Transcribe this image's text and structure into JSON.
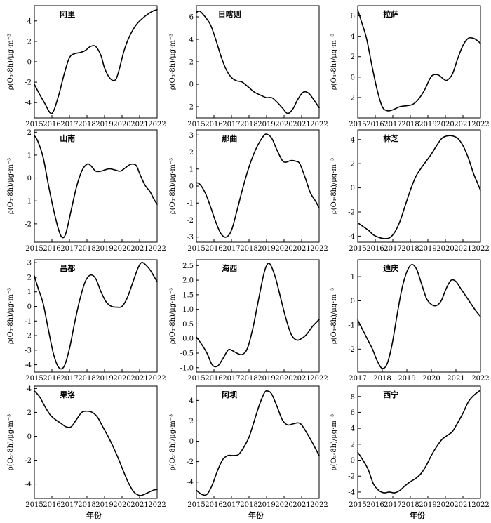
{
  "figure": {
    "ylabel": "ρ(O₃-8h)/μg·m⁻³",
    "xlabel": "年份"
  },
  "chart_data": [
    {
      "type": "line",
      "title": "阿里",
      "xlabel": "",
      "ylabel": "ρ(O₃-8h)/μg·m⁻³",
      "xlim": [
        2015,
        2022
      ],
      "xticks": [
        2015,
        2016,
        2017,
        2018,
        2019,
        2020,
        2021,
        2022
      ],
      "ylim": [
        -5.5,
        5.5
      ],
      "yticks": [
        -4,
        -2,
        0,
        2,
        4
      ],
      "series": [
        {
          "x": [
            2015,
            2015.3,
            2015.6,
            2015.9,
            2016.1,
            2016.4,
            2016.7,
            2017.0,
            2017.3,
            2017.6,
            2017.9,
            2018.2,
            2018.5,
            2018.8,
            2019.0,
            2019.3,
            2019.6,
            2019.8,
            2020.1,
            2020.4,
            2020.8,
            2021.2,
            2021.5,
            2021.8,
            2022.0
          ],
          "y": [
            -2.2,
            -3.2,
            -4.1,
            -5.0,
            -4.8,
            -3.2,
            -1.2,
            0.4,
            0.8,
            0.9,
            1.1,
            1.5,
            1.5,
            0.6,
            -0.6,
            -1.6,
            -1.8,
            -1.0,
            1.0,
            2.4,
            3.6,
            4.3,
            4.7,
            5.0,
            5.1
          ]
        }
      ]
    },
    {
      "type": "line",
      "title": "日喀则",
      "xlabel": "",
      "ylabel": "ρ(O₃-8h)/μg·m⁻³",
      "xlim": [
        2015,
        2022
      ],
      "xticks": [
        2015,
        2016,
        2017,
        2018,
        2019,
        2020,
        2021,
        2022
      ],
      "ylim": [
        -3,
        7
      ],
      "yticks": [
        -2,
        0,
        2,
        4,
        6
      ],
      "series": [
        {
          "x": [
            2015,
            2015.2,
            2015.5,
            2015.8,
            2016.1,
            2016.4,
            2016.7,
            2017.0,
            2017.3,
            2017.6,
            2018.0,
            2018.3,
            2018.7,
            2019.0,
            2019.3,
            2019.6,
            2019.9,
            2020.2,
            2020.5,
            2020.8,
            2021.1,
            2021.4,
            2021.7,
            2022.0
          ],
          "y": [
            6.4,
            6.5,
            6.0,
            5.3,
            4.0,
            2.5,
            1.3,
            0.6,
            0.3,
            0.2,
            -0.3,
            -0.7,
            -1.0,
            -1.2,
            -1.2,
            -1.6,
            -2.1,
            -2.6,
            -2.2,
            -1.3,
            -0.7,
            -0.8,
            -1.4,
            -2.1
          ]
        }
      ]
    },
    {
      "type": "line",
      "title": "拉萨",
      "xlabel": "",
      "ylabel": "ρ(O₃-8h)/μg·m⁻³",
      "xlim": [
        2015,
        2022
      ],
      "xticks": [
        2015,
        2016,
        2017,
        2018,
        2019,
        2020,
        2021,
        2022
      ],
      "ylim": [
        -4,
        7
      ],
      "yticks": [
        -2,
        0,
        2,
        4,
        6
      ],
      "series": [
        {
          "x": [
            2015,
            2015.2,
            2015.5,
            2015.8,
            2016.1,
            2016.4,
            2016.7,
            2017.0,
            2017.4,
            2017.8,
            2018.1,
            2018.4,
            2018.8,
            2019.1,
            2019.3,
            2019.6,
            2019.9,
            2020.1,
            2020.4,
            2020.7,
            2021.0,
            2021.3,
            2021.6,
            2021.8,
            2022.0
          ],
          "y": [
            6.6,
            5.5,
            3.8,
            1.2,
            -1.2,
            -2.9,
            -3.3,
            -3.2,
            -2.9,
            -2.8,
            -2.7,
            -2.3,
            -1.3,
            -0.2,
            0.2,
            0.2,
            -0.2,
            -0.3,
            0.3,
            1.8,
            3.1,
            3.8,
            3.8,
            3.6,
            3.3
          ]
        }
      ]
    },
    {
      "type": "line",
      "title": "山南",
      "xlabel": "",
      "ylabel": "ρ(O₃-8h)/μg·m⁻³",
      "xlim": [
        2015,
        2022
      ],
      "xticks": [
        2015,
        2016,
        2017,
        2018,
        2019,
        2020,
        2021,
        2022
      ],
      "ylim": [
        -2.8,
        2.1
      ],
      "yticks": [
        -2,
        -1,
        0,
        1,
        2
      ],
      "series": [
        {
          "x": [
            2015,
            2015.2,
            2015.5,
            2015.8,
            2016.1,
            2016.4,
            2016.6,
            2016.8,
            2017.1,
            2017.4,
            2017.7,
            2018.0,
            2018.2,
            2018.5,
            2018.8,
            2019.0,
            2019.3,
            2019.6,
            2019.9,
            2020.2,
            2020.5,
            2020.8,
            2021.0,
            2021.3,
            2021.6,
            2021.8,
            2022.0
          ],
          "y": [
            1.85,
            1.6,
            0.9,
            -0.3,
            -1.4,
            -2.3,
            -2.6,
            -2.4,
            -1.4,
            -0.4,
            0.3,
            0.6,
            0.55,
            0.3,
            0.3,
            0.35,
            0.4,
            0.35,
            0.3,
            0.45,
            0.6,
            0.55,
            0.2,
            -0.3,
            -0.6,
            -0.9,
            -1.15
          ]
        }
      ]
    },
    {
      "type": "line",
      "title": "那曲",
      "xlabel": "",
      "ylabel": "ρ(O₃-8h)/μg·m⁻³",
      "xlim": [
        2015,
        2022
      ],
      "xticks": [
        2015,
        2016,
        2017,
        2018,
        2019,
        2020,
        2021,
        2022
      ],
      "ylim": [
        -3.3,
        3.3
      ],
      "yticks": [
        -3,
        -2,
        -1,
        0,
        1,
        2,
        3
      ],
      "series": [
        {
          "x": [
            2015,
            2015.2,
            2015.5,
            2015.8,
            2016.1,
            2016.4,
            2016.7,
            2017.0,
            2017.3,
            2017.6,
            2017.9,
            2018.2,
            2018.5,
            2018.8,
            2019.0,
            2019.3,
            2019.6,
            2019.9,
            2020.1,
            2020.4,
            2020.7,
            2020.9,
            2021.2,
            2021.5,
            2021.8,
            2022.0
          ],
          "y": [
            0.2,
            0.1,
            -0.4,
            -1.2,
            -2.1,
            -2.8,
            -3.0,
            -2.6,
            -1.5,
            -0.3,
            0.8,
            1.7,
            2.4,
            2.9,
            3.05,
            2.8,
            2.1,
            1.5,
            1.4,
            1.5,
            1.45,
            1.3,
            0.5,
            -0.4,
            -0.9,
            -1.3
          ]
        }
      ]
    },
    {
      "type": "line",
      "title": "林芝",
      "xlabel": "",
      "ylabel": "ρ(O₃-8h)/μg·m⁻³",
      "xlim": [
        2015,
        2022
      ],
      "xticks": [
        2015,
        2016,
        2017,
        2018,
        2019,
        2020,
        2021,
        2022
      ],
      "ylim": [
        -4.5,
        4.8
      ],
      "yticks": [
        -4,
        -2,
        0,
        2,
        4
      ],
      "series": [
        {
          "x": [
            2015,
            2015.3,
            2015.6,
            2015.9,
            2016.2,
            2016.5,
            2016.8,
            2017.1,
            2017.4,
            2017.7,
            2018.0,
            2018.3,
            2018.6,
            2018.9,
            2019.2,
            2019.5,
            2019.8,
            2020.1,
            2020.4,
            2020.7,
            2021.0,
            2021.3,
            2021.6,
            2021.8,
            2022.0
          ],
          "y": [
            -2.9,
            -3.2,
            -3.5,
            -3.9,
            -4.1,
            -4.2,
            -4.15,
            -3.7,
            -2.8,
            -1.5,
            -0.2,
            0.9,
            1.6,
            2.2,
            2.8,
            3.5,
            4.1,
            4.3,
            4.3,
            4.1,
            3.5,
            2.5,
            1.2,
            0.5,
            -0.2
          ]
        }
      ]
    },
    {
      "type": "line",
      "title": "昌都",
      "xlabel": "",
      "ylabel": "ρ(O₃-8h)/μg·m⁻³",
      "xlim": [
        2015,
        2022
      ],
      "xticks": [
        2015,
        2016,
        2017,
        2018,
        2019,
        2020,
        2021,
        2022
      ],
      "ylim": [
        -4.5,
        3.2
      ],
      "yticks": [
        -4,
        -3,
        -2,
        -1,
        0,
        1,
        2,
        3
      ],
      "series": [
        {
          "x": [
            2015,
            2015.2,
            2015.5,
            2015.8,
            2016.1,
            2016.4,
            2016.7,
            2017.0,
            2017.3,
            2017.6,
            2017.9,
            2018.2,
            2018.5,
            2018.8,
            2019.1,
            2019.4,
            2019.7,
            2020.0,
            2020.3,
            2020.6,
            2020.9,
            2021.1,
            2021.3,
            2021.6,
            2021.8,
            2022.0
          ],
          "y": [
            2.1,
            1.3,
            0.2,
            -1.6,
            -3.3,
            -4.2,
            -4.1,
            -2.9,
            -1.1,
            0.5,
            1.7,
            2.15,
            1.9,
            1.0,
            0.3,
            0.0,
            -0.05,
            0.0,
            0.6,
            1.6,
            2.6,
            3.0,
            2.9,
            2.5,
            2.1,
            1.7
          ]
        }
      ]
    },
    {
      "type": "line",
      "title": "海西",
      "xlabel": "",
      "ylabel": "ρ(O₃-8h)/μg·m⁻³",
      "xlim": [
        2015,
        2022
      ],
      "xticks": [
        2015,
        2016,
        2017,
        2018,
        2019,
        2020,
        2021,
        2022
      ],
      "ylim": [
        -1.15,
        2.7
      ],
      "yticks": [
        -1.0,
        -0.5,
        0.0,
        0.5,
        1.0,
        1.5,
        2.0,
        2.5
      ],
      "series": [
        {
          "x": [
            2015,
            2015.3,
            2015.6,
            2015.9,
            2016.2,
            2016.5,
            2016.8,
            2017.0,
            2017.3,
            2017.6,
            2017.9,
            2018.2,
            2018.5,
            2018.8,
            2019.0,
            2019.2,
            2019.5,
            2019.8,
            2020.1,
            2020.4,
            2020.7,
            2021.0,
            2021.3,
            2021.6,
            2022.0
          ],
          "y": [
            0.05,
            -0.2,
            -0.5,
            -0.9,
            -0.95,
            -0.7,
            -0.4,
            -0.4,
            -0.5,
            -0.55,
            -0.35,
            0.3,
            1.2,
            2.1,
            2.5,
            2.55,
            2.1,
            1.4,
            0.7,
            0.15,
            -0.05,
            0.0,
            0.15,
            0.4,
            0.65
          ]
        }
      ]
    },
    {
      "type": "line",
      "title": "迪庆",
      "xlabel": "",
      "ylabel": "ρ(O₃-8h)/μg·m⁻³",
      "xlim": [
        2017,
        2022
      ],
      "xticks": [
        2017,
        2018,
        2019,
        2020,
        2021,
        2022
      ],
      "ylim": [
        -2.95,
        1.7
      ],
      "yticks": [
        -2,
        -1,
        0,
        1
      ],
      "series": [
        {
          "x": [
            2017,
            2017.2,
            2017.4,
            2017.6,
            2017.8,
            2018.0,
            2018.2,
            2018.4,
            2018.6,
            2018.8,
            2019.0,
            2019.2,
            2019.4,
            2019.6,
            2019.8,
            2020.0,
            2020.2,
            2020.4,
            2020.6,
            2020.8,
            2021.0,
            2021.2,
            2021.4,
            2021.6,
            2021.8,
            2022.0
          ],
          "y": [
            -0.8,
            -1.2,
            -1.6,
            -2.0,
            -2.5,
            -2.8,
            -2.6,
            -1.8,
            -0.6,
            0.5,
            1.2,
            1.5,
            1.3,
            0.7,
            0.1,
            -0.15,
            -0.2,
            0.0,
            0.5,
            0.85,
            0.8,
            0.5,
            0.2,
            -0.1,
            -0.4,
            -0.65
          ]
        }
      ]
    },
    {
      "type": "line",
      "title": "果洛",
      "xlabel": "",
      "ylabel": "ρ(O₃-8h)/μg·m⁻³",
      "xlim": [
        2015,
        2022
      ],
      "xticks": [
        2015,
        2016,
        2017,
        2018,
        2019,
        2020,
        2021,
        2022
      ],
      "ylim": [
        -5.2,
        4.2
      ],
      "yticks": [
        -4,
        -2,
        0,
        2,
        4
      ],
      "series": [
        {
          "x": [
            2015,
            2015.3,
            2015.6,
            2015.9,
            2016.2,
            2016.5,
            2016.8,
            2017.1,
            2017.4,
            2017.7,
            2018.0,
            2018.3,
            2018.6,
            2018.9,
            2019.2,
            2019.5,
            2019.8,
            2020.1,
            2020.4,
            2020.7,
            2021.0,
            2021.2,
            2021.5,
            2021.8,
            2022.0
          ],
          "y": [
            3.8,
            3.3,
            2.5,
            1.8,
            1.4,
            1.1,
            0.8,
            0.8,
            1.4,
            2.0,
            2.1,
            2.0,
            1.6,
            0.8,
            0.0,
            -0.9,
            -1.9,
            -3.0,
            -4.0,
            -4.7,
            -4.95,
            -4.9,
            -4.7,
            -4.5,
            -4.45
          ]
        }
      ]
    },
    {
      "type": "line",
      "title": "阿坝",
      "xlabel": "",
      "ylabel": "ρ(O₃-8h)/μg·m⁻³",
      "xlim": [
        2015,
        2022
      ],
      "xticks": [
        2015,
        2016,
        2017,
        2018,
        2019,
        2020,
        2021,
        2022
      ],
      "ylim": [
        -5.6,
        5.4
      ],
      "yticks": [
        -4,
        -2,
        0,
        2,
        4
      ],
      "series": [
        {
          "x": [
            2015,
            2015.3,
            2015.6,
            2015.9,
            2016.2,
            2016.5,
            2016.8,
            2017.1,
            2017.4,
            2017.7,
            2018.0,
            2018.3,
            2018.6,
            2018.9,
            2019.1,
            2019.3,
            2019.6,
            2019.9,
            2020.2,
            2020.5,
            2020.8,
            2021.0,
            2021.3,
            2021.6,
            2022.0
          ],
          "y": [
            -4.8,
            -5.2,
            -5.2,
            -4.3,
            -2.9,
            -1.8,
            -1.4,
            -1.4,
            -1.3,
            -0.6,
            0.4,
            2.0,
            3.6,
            4.8,
            4.9,
            4.6,
            3.4,
            2.1,
            1.6,
            1.7,
            1.8,
            1.6,
            0.8,
            -0.1,
            -1.4
          ]
        }
      ]
    },
    {
      "type": "line",
      "title": "西宁",
      "xlabel": "",
      "ylabel": "ρ(O₃-8h)/μg·m⁻³",
      "xlim": [
        2015,
        2022
      ],
      "xticks": [
        2015,
        2016,
        2017,
        2018,
        2019,
        2020,
        2021,
        2022
      ],
      "ylim": [
        -4.8,
        9.3
      ],
      "yticks": [
        -4,
        -2,
        0,
        2,
        4,
        6,
        8
      ],
      "series": [
        {
          "x": [
            2015,
            2015.3,
            2015.6,
            2015.9,
            2016.2,
            2016.5,
            2016.8,
            2017.1,
            2017.4,
            2017.7,
            2018.0,
            2018.3,
            2018.6,
            2018.9,
            2019.2,
            2019.5,
            2019.8,
            2020.1,
            2020.4,
            2020.7,
            2021.0,
            2021.3,
            2021.6,
            2022.0
          ],
          "y": [
            1.0,
            0.0,
            -1.2,
            -3.0,
            -3.8,
            -4.1,
            -4.0,
            -4.1,
            -3.8,
            -3.2,
            -2.7,
            -2.3,
            -1.7,
            -0.7,
            0.6,
            1.7,
            2.6,
            3.1,
            3.6,
            4.7,
            5.9,
            7.3,
            8.1,
            8.8
          ]
        }
      ]
    }
  ]
}
